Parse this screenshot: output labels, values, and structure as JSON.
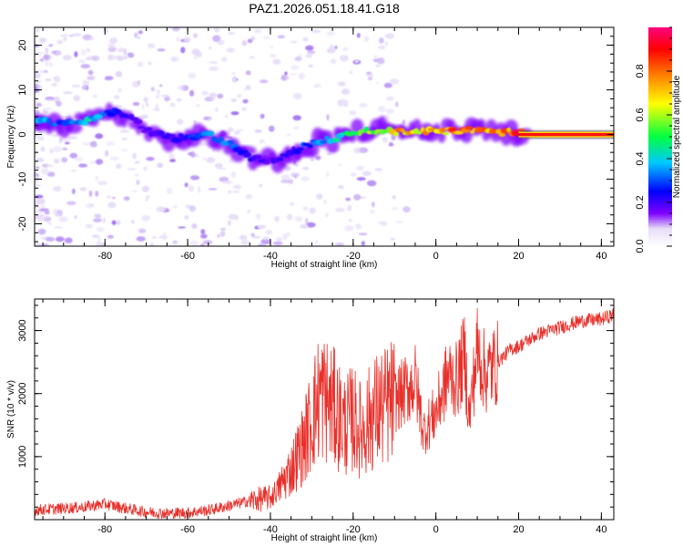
{
  "title": "PAZ1.2026.051.18.41.G18",
  "colors": {
    "snr_line": "#e8302a",
    "axis": "#000000",
    "colorbar_stops": [
      "#e8e0f8",
      "#7f00ff",
      "#0000ff",
      "#00ffff",
      "#00ff00",
      "#ffff00",
      "#ff8000",
      "#ff0000",
      "#ff0080"
    ]
  },
  "chart_data": [
    {
      "type": "heatmap",
      "name": "spectrogram",
      "title": "PAZ1.2026.051.18.41.G18",
      "xlabel": "Height of straight line (km)",
      "ylabel": "Frequency (Hz)",
      "xlim": [
        -97,
        43
      ],
      "ylim": [
        -25,
        24
      ],
      "x_ticks": [
        -80,
        -60,
        -40,
        -20,
        0,
        20,
        40
      ],
      "y_ticks": [
        -20,
        -10,
        0,
        10,
        20
      ],
      "x_tick_labels": [
        "-80",
        "-60",
        "-40",
        "-20",
        "0",
        "20",
        "40"
      ],
      "y_tick_labels": [
        "-20",
        "-10",
        "0",
        "10",
        "20"
      ],
      "ridge": {
        "x": [
          -95,
          -90,
          -85,
          -80,
          -75,
          -70,
          -65,
          -60,
          -55,
          -50,
          -45,
          -40,
          -35,
          -30,
          -25,
          -20,
          -15,
          -10,
          -5,
          0,
          5,
          10,
          15,
          20,
          25,
          30,
          35,
          40,
          43
        ],
        "freq": [
          3.5,
          2.0,
          3.0,
          5.0,
          4.5,
          1.0,
          -0.5,
          -1.0,
          0.0,
          -2.0,
          -5.0,
          -6.0,
          -4.0,
          -2.0,
          -1.0,
          0.5,
          1.0,
          0.5,
          1.0,
          0.5,
          1.0,
          1.0,
          0.5,
          0.5,
          0.0,
          0.0,
          0.0,
          0.0,
          0.0
        ],
        "amplitude": [
          0.45,
          0.3,
          0.45,
          0.35,
          0.25,
          0.2,
          0.25,
          0.3,
          0.4,
          0.35,
          0.25,
          0.2,
          0.25,
          0.35,
          0.45,
          0.55,
          0.65,
          0.75,
          0.8,
          0.75,
          0.85,
          0.8,
          0.85,
          0.9,
          0.95,
          1.0,
          1.0,
          1.0,
          1.0
        ]
      },
      "colorbar": {
        "label": "Normalized spectral amplitude",
        "range": [
          0.0,
          1.0
        ],
        "ticks": [
          0.0,
          0.2,
          0.4,
          0.6,
          0.8
        ],
        "tick_labels": [
          "0.0",
          "0.2",
          "0.4",
          "0.6",
          "0.8"
        ]
      }
    },
    {
      "type": "line",
      "name": "snr",
      "xlabel": "Height of straight line (km)",
      "ylabel": "SNR (10 * v/v)",
      "xlim": [
        -97,
        43
      ],
      "ylim": [
        0,
        3500
      ],
      "x_ticks": [
        -80,
        -60,
        -40,
        -20,
        0,
        20,
        40
      ],
      "y_ticks": [
        1000,
        2000,
        3000
      ],
      "x_tick_labels": [
        "-80",
        "-60",
        "-40",
        "-20",
        "0",
        "20",
        "40"
      ],
      "y_tick_labels": [
        "1000",
        "2000",
        "3000"
      ],
      "series": [
        {
          "name": "SNR",
          "x": [
            -97,
            -90,
            -85,
            -80,
            -75,
            -70,
            -65,
            -60,
            -55,
            -50,
            -45,
            -40,
            -38,
            -35,
            -32,
            -30,
            -28,
            -25,
            -22,
            -20,
            -18,
            -15,
            -12,
            -10,
            -8,
            -5,
            -3,
            0,
            3,
            5,
            7,
            8,
            10,
            12,
            15,
            18,
            20,
            25,
            30,
            35,
            40,
            43
          ],
          "values": [
            150,
            180,
            200,
            250,
            180,
            120,
            100,
            110,
            150,
            220,
            300,
            350,
            500,
            800,
            1200,
            1600,
            2000,
            1800,
            1500,
            1600,
            1400,
            1700,
            1800,
            1900,
            2000,
            2200,
            1400,
            1700,
            2300,
            2200,
            2600,
            1600,
            2700,
            2300,
            2500,
            2700,
            2750,
            2950,
            3050,
            3150,
            3180,
            3250
          ]
        }
      ]
    }
  ]
}
